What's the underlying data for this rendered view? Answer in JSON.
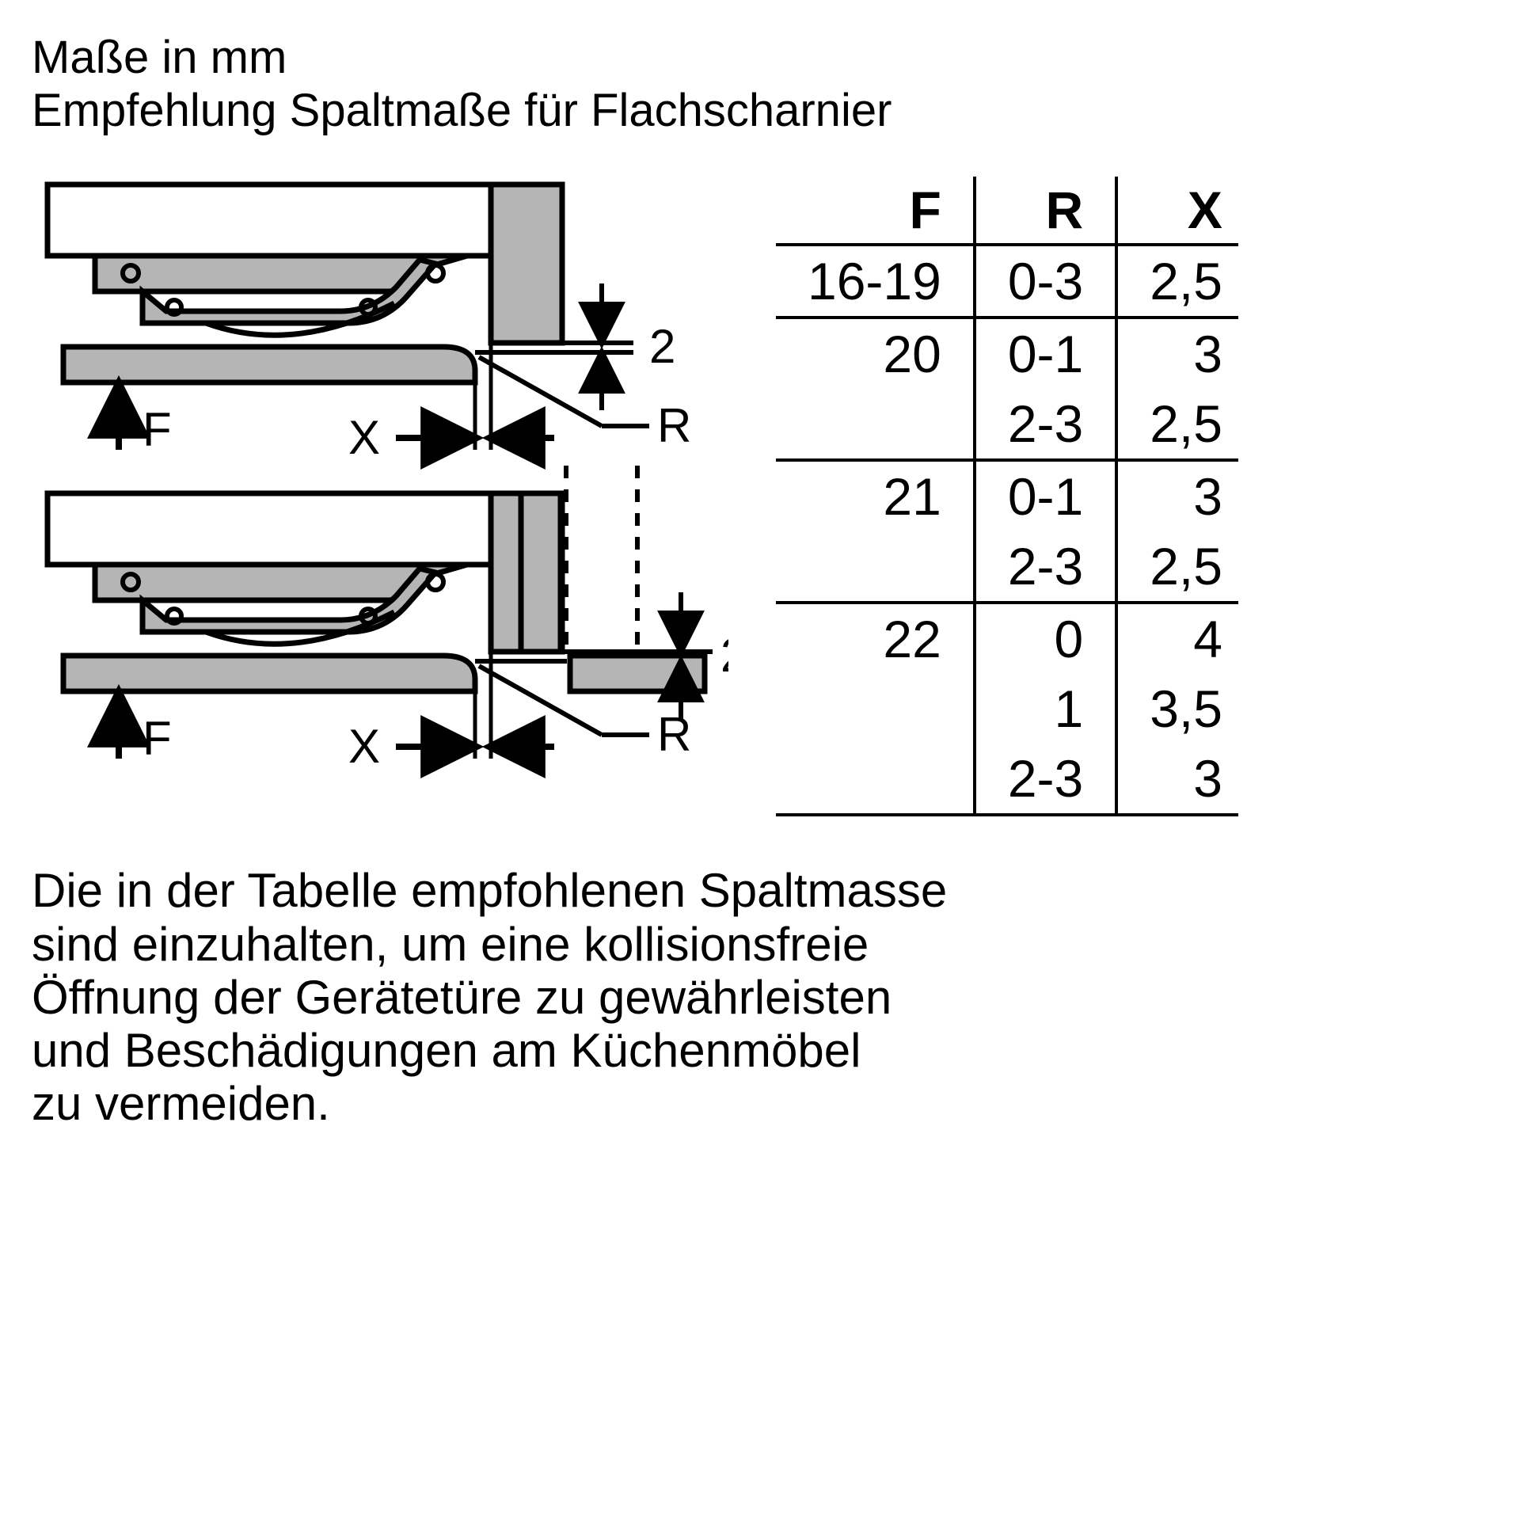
{
  "type": "diagram",
  "heading": {
    "line1": "Maße in mm",
    "line2": "Empfehlung Spaltmaße für Flachscharnier"
  },
  "diagram": {
    "stroke": "#000000",
    "stroke_width": 7,
    "fill_gray": "#b5b5b5",
    "fill_white": "#ffffff",
    "label_font_size": 60,
    "labels": {
      "gap_value": "2",
      "F": "F",
      "X": "X",
      "R": "R"
    }
  },
  "table": {
    "type": "table",
    "font_size": 66,
    "border_color": "#000000",
    "border_width": 4,
    "columns": [
      "F",
      "R",
      "X"
    ],
    "rows": [
      {
        "f": "16-19",
        "r": "0-3",
        "x": "2,5",
        "sep": true
      },
      {
        "f": "20",
        "r": "0-1",
        "x": "3",
        "sep": false
      },
      {
        "f": "",
        "r": "2-3",
        "x": "2,5",
        "sep": true
      },
      {
        "f": "21",
        "r": "0-1",
        "x": "3",
        "sep": false
      },
      {
        "f": "",
        "r": "2-3",
        "x": "2,5",
        "sep": true
      },
      {
        "f": "22",
        "r": "0",
        "x": "4",
        "sep": false
      },
      {
        "f": "",
        "r": "1",
        "x": "3,5",
        "sep": false
      },
      {
        "f": "",
        "r": "2-3",
        "x": "3",
        "sep": true
      }
    ]
  },
  "footer": {
    "l1": "Die in der Tabelle empfohlenen Spaltmasse",
    "l2": "sind einzuhalten, um eine kollisionsfreie",
    "l3": "Öffnung der Gerätetüre zu gewährleisten",
    "l4": "und Beschädigungen am Küchenmöbel",
    "l5": "zu vermeiden."
  }
}
